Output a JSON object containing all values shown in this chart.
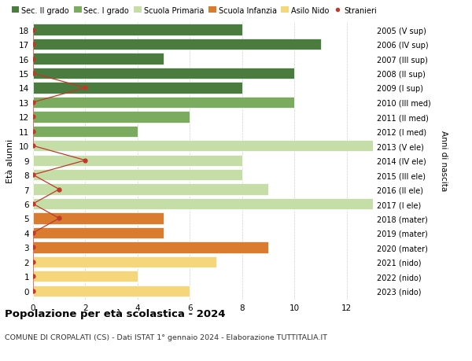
{
  "ages": [
    18,
    17,
    16,
    15,
    14,
    13,
    12,
    11,
    10,
    9,
    8,
    7,
    6,
    5,
    4,
    3,
    2,
    1,
    0
  ],
  "right_labels": [
    "2005 (V sup)",
    "2006 (IV sup)",
    "2007 (III sup)",
    "2008 (II sup)",
    "2009 (I sup)",
    "2010 (III med)",
    "2011 (II med)",
    "2012 (I med)",
    "2013 (V ele)",
    "2014 (IV ele)",
    "2015 (III ele)",
    "2016 (II ele)",
    "2017 (I ele)",
    "2018 (mater)",
    "2019 (mater)",
    "2020 (mater)",
    "2021 (nido)",
    "2022 (nido)",
    "2023 (nido)"
  ],
  "bar_values": [
    8,
    11,
    5,
    10,
    8,
    10,
    6,
    4,
    13,
    8,
    8,
    9,
    13,
    5,
    5,
    9,
    7,
    4,
    6
  ],
  "bar_colors": [
    "#4a7c3f",
    "#4a7c3f",
    "#4a7c3f",
    "#4a7c3f",
    "#4a7c3f",
    "#7bab5f",
    "#7bab5f",
    "#7bab5f",
    "#c5dea8",
    "#c5dea8",
    "#c5dea8",
    "#c5dea8",
    "#c5dea8",
    "#d97c30",
    "#d97c30",
    "#d97c30",
    "#f5d67a",
    "#f5d67a",
    "#f5d67a"
  ],
  "stranieri_x": [
    0,
    0,
    0,
    0,
    2,
    0,
    0,
    0,
    0,
    2,
    0,
    1,
    0,
    1,
    0,
    0,
    0,
    0,
    0
  ],
  "stranieri_color": "#c0392b",
  "legend_labels": [
    "Sec. II grado",
    "Sec. I grado",
    "Scuola Primaria",
    "Scuola Infanzia",
    "Asilo Nido",
    "Stranieri"
  ],
  "legend_colors": [
    "#4a7c3f",
    "#7bab5f",
    "#c5dea8",
    "#d97c30",
    "#f5d67a",
    "#c0392b"
  ],
  "title": "Popolazione per età scolastica - 2024",
  "subtitle": "COMUNE DI CROPALATI (CS) - Dati ISTAT 1° gennaio 2024 - Elaborazione TUTTITALIA.IT",
  "right_ylabel": "Anni di nascita",
  "ylabel": "Età alunni",
  "xlim": [
    0,
    13
  ],
  "xticks": [
    0,
    2,
    4,
    6,
    8,
    10,
    12
  ],
  "bg_color": "#ffffff",
  "grid_color": "#d0d0d0"
}
